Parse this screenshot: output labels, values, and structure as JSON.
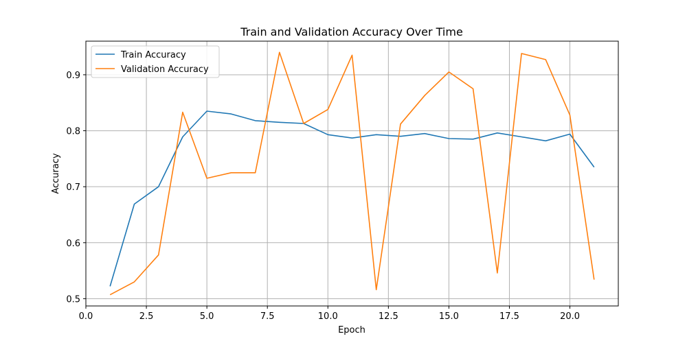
{
  "chart_data": {
    "type": "line",
    "title": "Train and Validation Accuracy Over Time",
    "xlabel": "Epoch",
    "ylabel": "Accuracy",
    "xlim": [
      0.0,
      22.0
    ],
    "ylim": [
      0.487,
      0.96
    ],
    "xticks": [
      0.0,
      2.5,
      5.0,
      7.5,
      10.0,
      12.5,
      15.0,
      17.5,
      20.0
    ],
    "xtick_labels": [
      "0.0",
      "2.5",
      "5.0",
      "7.5",
      "10.0",
      "12.5",
      "15.0",
      "17.5",
      "20.0"
    ],
    "yticks": [
      0.5,
      0.6,
      0.7,
      0.8,
      0.9
    ],
    "ytick_labels": [
      "0.5",
      "0.6",
      "0.7",
      "0.8",
      "0.9"
    ],
    "grid": true,
    "legend_position": "top-left",
    "x": [
      1,
      2,
      3,
      4,
      5,
      6,
      7,
      8,
      9,
      10,
      11,
      12,
      13,
      14,
      15,
      16,
      17,
      18,
      19,
      20,
      21
    ],
    "series": [
      {
        "name": "Train Accuracy",
        "color": "#1f77b4",
        "values": [
          0.522,
          0.669,
          0.7,
          0.789,
          0.835,
          0.83,
          0.818,
          0.815,
          0.813,
          0.793,
          0.787,
          0.793,
          0.79,
          0.795,
          0.786,
          0.785,
          0.796,
          0.789,
          0.782,
          0.794,
          0.735
        ]
      },
      {
        "name": "Validation Accuracy",
        "color": "#ff7f0e",
        "values": [
          0.507,
          0.53,
          0.578,
          0.833,
          0.715,
          0.725,
          0.725,
          0.94,
          0.813,
          0.838,
          0.935,
          0.516,
          0.812,
          0.863,
          0.905,
          0.875,
          0.546,
          0.938,
          0.927,
          0.828,
          0.534
        ]
      }
    ]
  }
}
